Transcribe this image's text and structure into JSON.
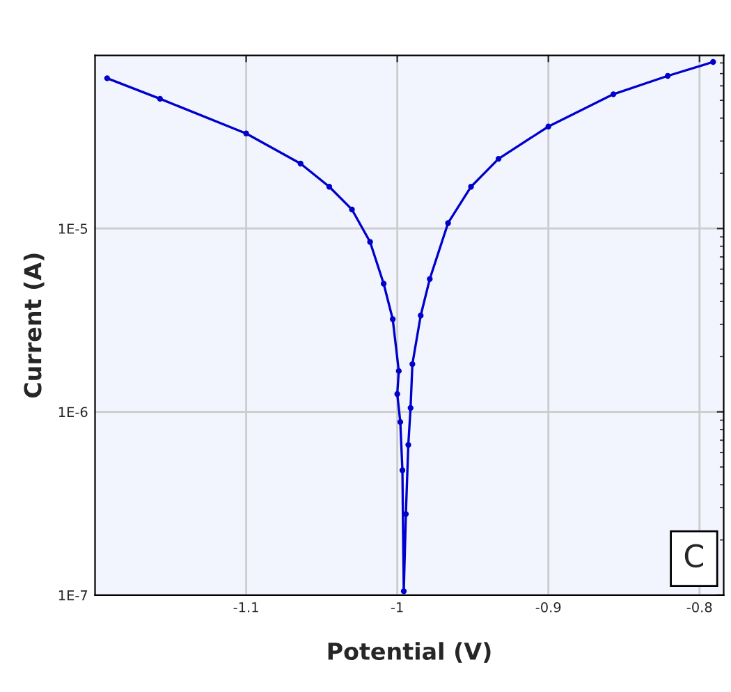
{
  "chart_data": {
    "type": "line",
    "xlabel": "Potential (V)",
    "ylabel": "Current (A)",
    "series": [
      {
        "color": "#0000cc",
        "x": [
          -1.192,
          -1.157,
          -1.1,
          -1.064,
          -1.045,
          -1.03,
          -1.018,
          -1.009,
          -1.003,
          -0.999,
          -1.0,
          -0.998,
          -0.9966,
          -0.9957,
          -0.9943,
          -0.9927,
          -0.9912,
          -0.99,
          -0.9845,
          -0.9785,
          -0.9664,
          -0.9512,
          -0.933,
          -0.9,
          -0.857,
          -0.821,
          -0.791
        ],
        "values": [
          6.6e-05,
          5.1e-05,
          3.3e-05,
          2.26e-05,
          1.69e-05,
          1.27e-05,
          8.45e-06,
          5e-06,
          3.2e-06,
          1.67e-06,
          1.25e-06,
          8.8e-07,
          4.8e-07,
          1.05e-07,
          2.77e-07,
          6.6e-07,
          1.05e-06,
          1.82e-06,
          3.35e-06,
          5.3e-06,
          1.07e-05,
          1.69e-05,
          2.4e-05,
          3.6e-05,
          5.4e-05,
          6.8e-05,
          8.1e-05
        ]
      }
    ],
    "log": "y",
    "xlim": [
      -1.2,
      -0.784
    ],
    "ylim": [
      1e-07,
      8.8e-05
    ],
    "xticks": [
      -1.1,
      -1,
      -0.9,
      -0.8
    ],
    "yticks": [
      {
        "value": 1e-07,
        "label": "1E-7"
      },
      {
        "value": 1e-06,
        "label": "1E-6"
      },
      {
        "value": 1e-05,
        "label": "1E-5"
      }
    ],
    "grid": true,
    "marker": "circle",
    "line_style": "solid",
    "annotations": [
      "C"
    ]
  }
}
